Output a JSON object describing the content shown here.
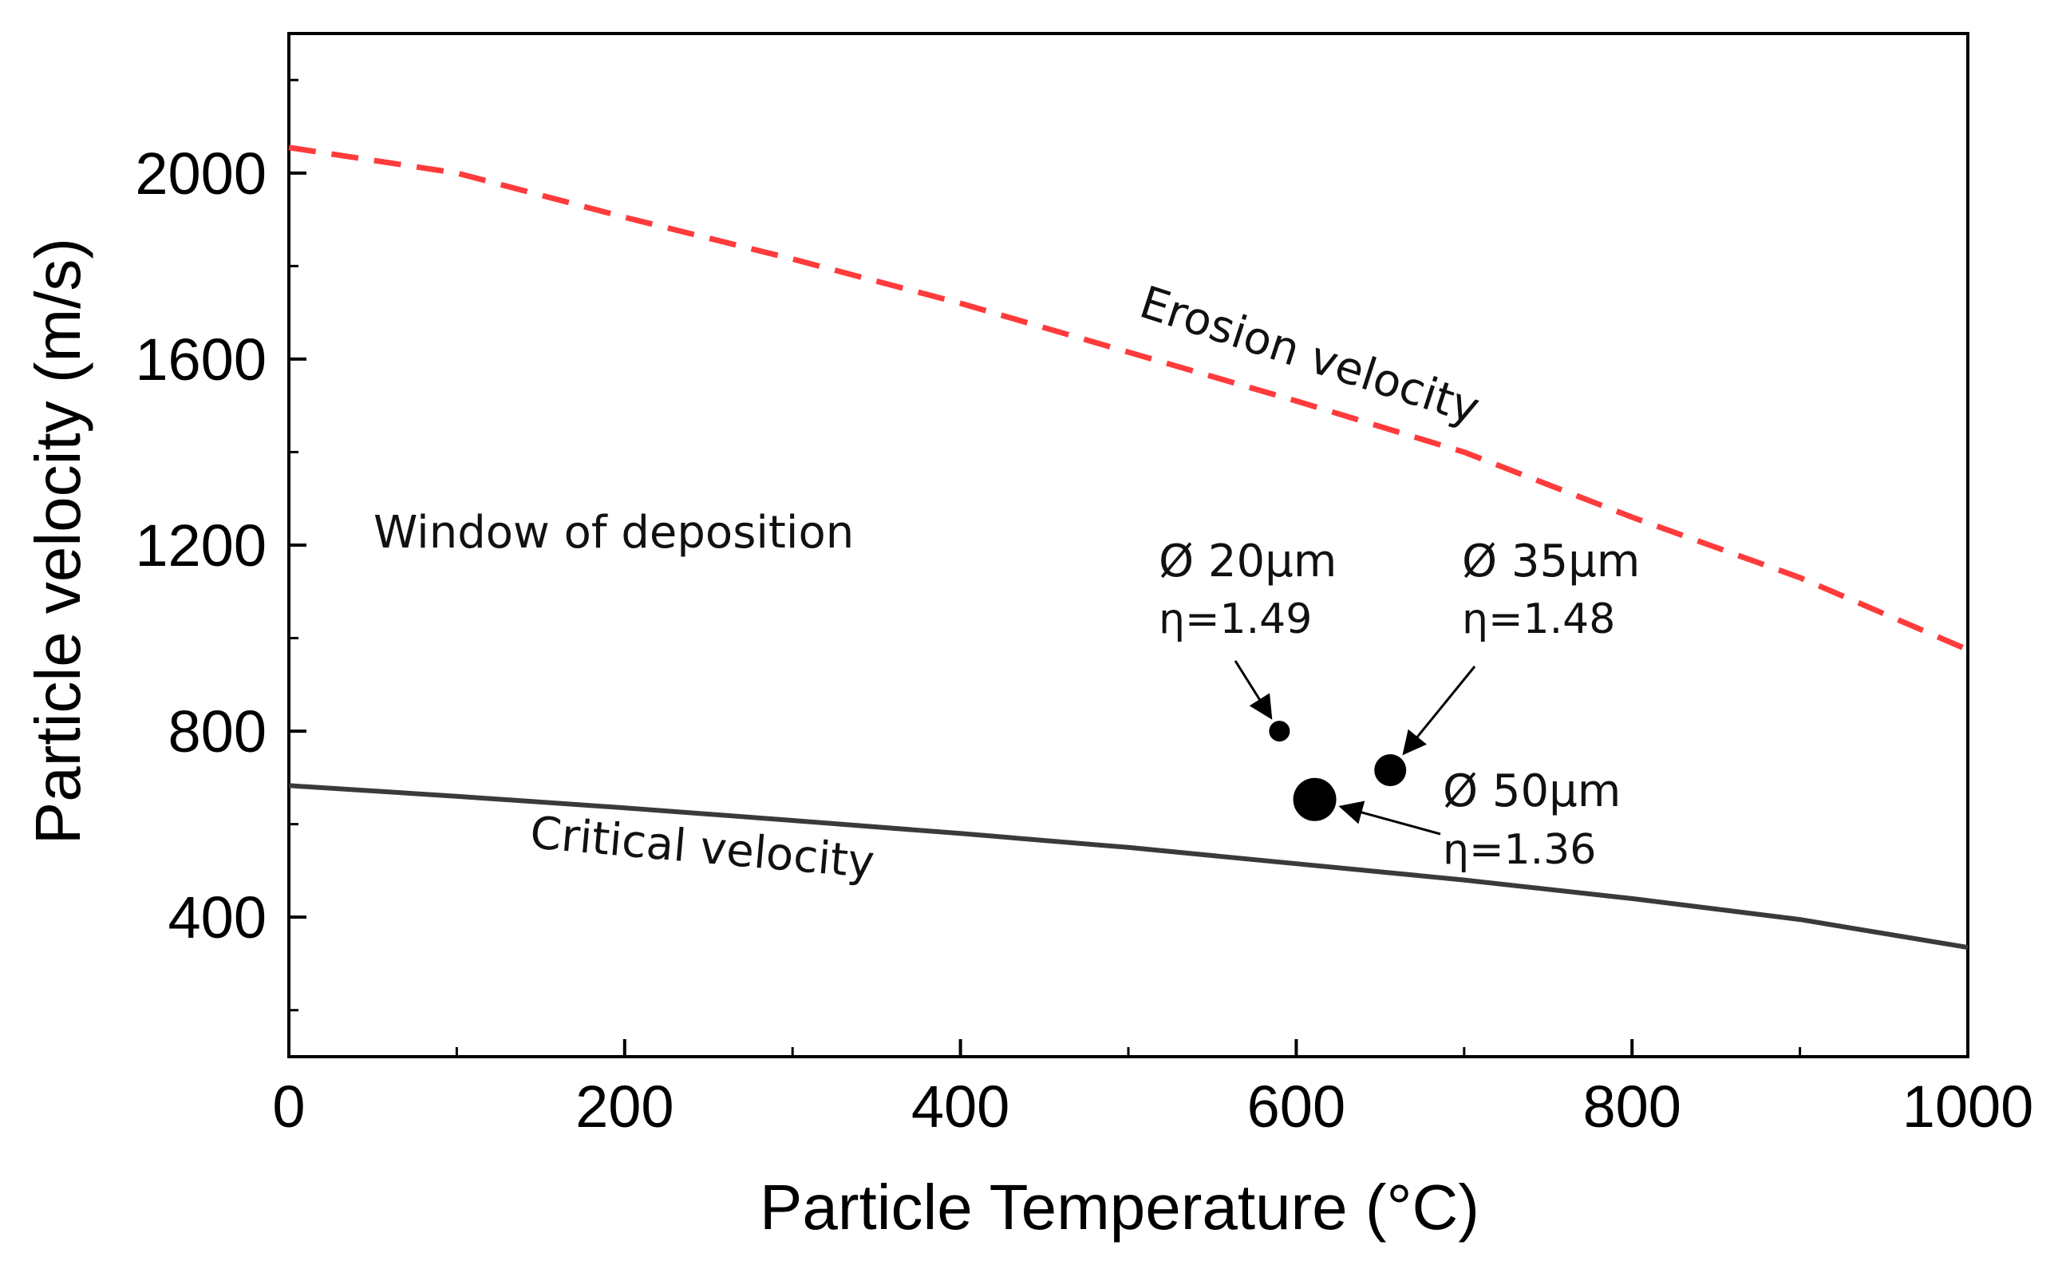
{
  "chart_data": {
    "type": "line",
    "title": "",
    "xlabel": "Particle Temperature (°C)",
    "ylabel": "Particle velocity (m/s)",
    "xlim": [
      0,
      1000
    ],
    "ylim": [
      100,
      2300
    ],
    "x_ticks": [
      0,
      200,
      400,
      600,
      800,
      1000
    ],
    "y_ticks": [
      400,
      800,
      1200,
      1600,
      2000
    ],
    "x_minor_ticks": [
      100,
      300,
      500,
      700,
      900
    ],
    "y_minor_ticks": [
      200,
      600,
      1000,
      1400,
      1800,
      2200
    ],
    "grid": false,
    "series": [
      {
        "name": "Erosion velocity",
        "style": "dashed",
        "color": "#ff3b3b",
        "x": [
          0,
          100,
          200,
          300,
          400,
          500,
          600,
          700,
          800,
          900,
          1000
        ],
        "y": [
          2055,
          2000,
          1905,
          1815,
          1720,
          1615,
          1510,
          1400,
          1260,
          1130,
          975
        ]
      },
      {
        "name": "Critical velocity",
        "style": "solid",
        "color": "#3a3a3a",
        "x": [
          0,
          100,
          200,
          300,
          400,
          500,
          600,
          700,
          800,
          900,
          1000
        ],
        "y": [
          683,
          660,
          635,
          608,
          580,
          550,
          515,
          480,
          440,
          395,
          335
        ]
      }
    ],
    "points": [
      {
        "label": "Ø 20μm",
        "eta": "η=1.49",
        "x": 590,
        "y": 800,
        "size": "small"
      },
      {
        "label": "Ø 35μm",
        "eta": "η=1.48",
        "x": 656,
        "y": 716,
        "size": "medium"
      },
      {
        "label": "Ø 50μm",
        "eta": "η=1.36",
        "x": 611,
        "y": 653,
        "size": "large"
      }
    ],
    "annotations": {
      "region": "Window of deposition",
      "erosion_label": "Erosion velocity",
      "critical_label": "Critical velocity"
    }
  }
}
